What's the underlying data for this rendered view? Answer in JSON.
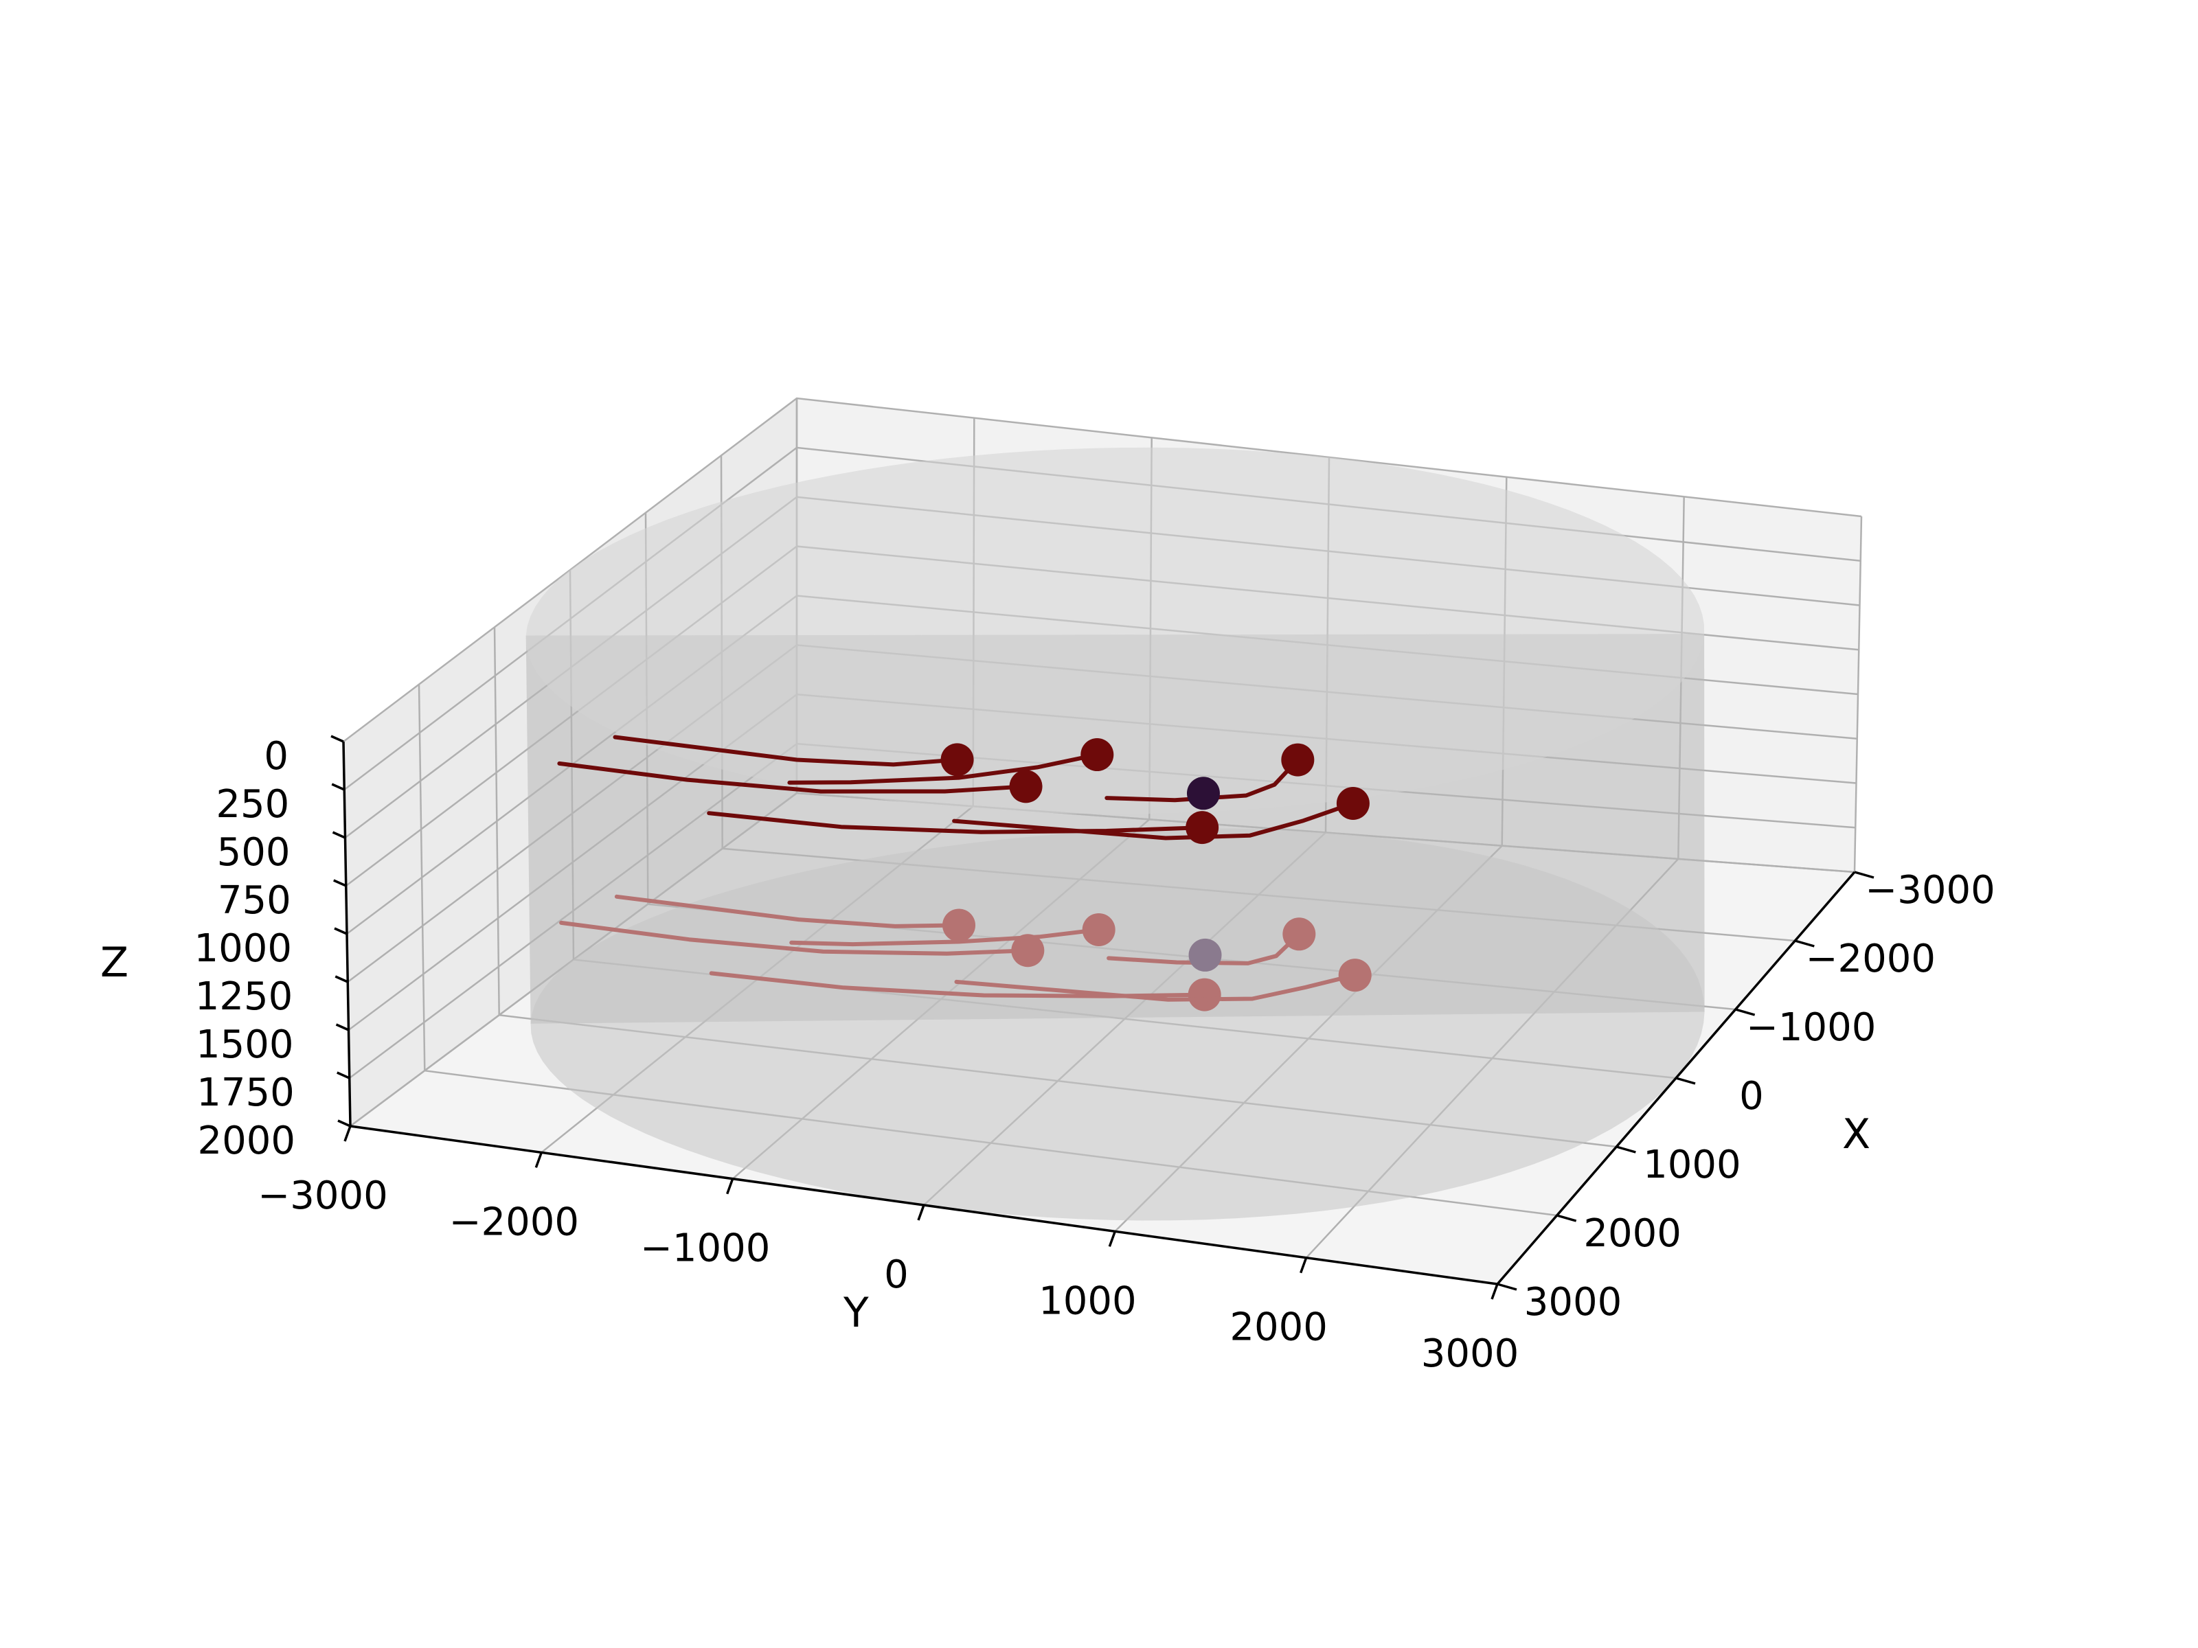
{
  "chart_data": {
    "type": "3d-scatter-line",
    "title": "",
    "xlabel": "X",
    "ylabel": "Y",
    "zlabel": "Z",
    "xlim": [
      3000,
      -3000
    ],
    "ylim": [
      -3000,
      3000
    ],
    "zlim": [
      2000,
      0
    ],
    "xticks": [
      "−3000",
      "−2000",
      "−1000",
      "0",
      "1000",
      "2000",
      "3000"
    ],
    "yticks": [
      "−3000",
      "−2000",
      "−1000",
      "0",
      "1000",
      "2000",
      "3000"
    ],
    "zticks": [
      "0",
      "250",
      "500",
      "750",
      "1000",
      "1250",
      "1500",
      "1750",
      "2000"
    ],
    "grid": true,
    "cylinder": {
      "radius": 3000,
      "z_range": [
        0,
        2000
      ],
      "color": "#bdbdbd"
    },
    "colors": {
      "trajectory": "#6e0a0a",
      "agent": "#2c1036",
      "shadow_trajectory": "#b57372",
      "shadow_agent": "#8a7a8e"
    },
    "series": [
      {
        "points": [
          [
            800,
            -1500,
            700
          ],
          [
            720,
            -1200,
            690
          ],
          [
            500,
            -700,
            680
          ],
          [
            300,
            -350,
            650
          ],
          [
            100,
            -100,
            620
          ]
        ]
      },
      {
        "points": [
          [
            400,
            -2600,
            700
          ],
          [
            420,
            -2100,
            700
          ],
          [
            440,
            -1600,
            700
          ],
          [
            380,
            -1100,
            690
          ],
          [
            260,
            -800,
            670
          ]
        ]
      },
      {
        "points": [
          [
            900,
            -2700,
            700
          ],
          [
            930,
            -2000,
            700
          ],
          [
            880,
            -1300,
            700
          ],
          [
            700,
            -700,
            690
          ],
          [
            520,
            -330,
            680
          ]
        ]
      },
      {
        "points": [
          [
            1400,
            -1700,
            700
          ],
          [
            1380,
            -1000,
            700
          ],
          [
            1250,
            -300,
            690
          ],
          [
            1050,
            300,
            680
          ],
          [
            870,
            750,
            670
          ]
        ]
      },
      {
        "points": [
          [
            500,
            100,
            700
          ],
          [
            450,
            450,
            690
          ],
          [
            350,
            800,
            660
          ],
          [
            200,
            900,
            640
          ],
          [
            -150,
            900,
            620
          ]
        ]
      },
      {
        "points": [
          [
            1100,
            -500,
            700
          ],
          [
            1000,
            600,
            700
          ],
          [
            850,
            1000,
            690
          ],
          [
            600,
            1200,
            670
          ],
          [
            350,
            1380,
            640
          ]
        ]
      }
    ],
    "agent_point": [
      300,
      550,
      690
    ]
  }
}
